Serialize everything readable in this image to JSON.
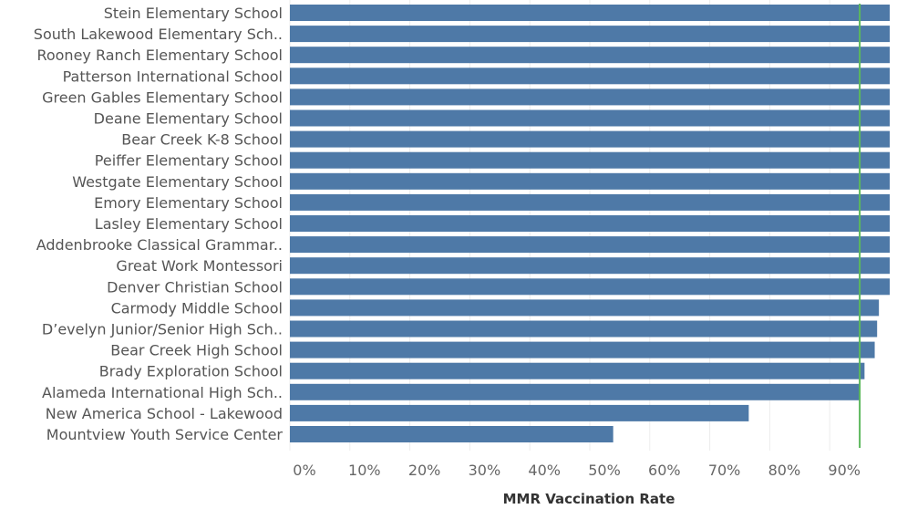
{
  "chart_data": {
    "type": "bar",
    "orientation": "horizontal",
    "title": "",
    "ylabel": "",
    "xlabel": "MMR Vaccination Rate",
    "xlim": [
      0,
      100
    ],
    "x_ticks": [
      "0%",
      "10%",
      "20%",
      "30%",
      "40%",
      "50%",
      "60%",
      "70%",
      "80%",
      "90%"
    ],
    "x_tick_values": [
      0,
      10,
      20,
      30,
      40,
      50,
      60,
      70,
      80,
      90
    ],
    "reference_line": {
      "value": 95,
      "color": "#5cb85c"
    },
    "bar_color": "#4e79a7",
    "grid": true,
    "categories": [
      "Stein Elementary School",
      "South Lakewood Elementary Sch..",
      "Rooney Ranch Elementary School",
      "Patterson International School",
      "Green Gables Elementary School",
      "Deane Elementary School",
      "Bear Creek K-8 School",
      "Peiffer Elementary School",
      "Westgate Elementary School",
      "Emory Elementary School",
      "Lasley Elementary School",
      "Addenbrooke Classical Grammar..",
      "Great Work Montessori",
      "Denver Christian School",
      "Carmody Middle School",
      "D’evelyn Junior/Senior High Sch..",
      "Bear Creek High School",
      "Brady Exploration School",
      "Alameda International High Sch..",
      "New America School - Lakewood",
      "Mountview Youth Service Center"
    ],
    "values": [
      100,
      100,
      100,
      100,
      100,
      100,
      100,
      100,
      100,
      100,
      100,
      100,
      100,
      100,
      98.2,
      97.9,
      97.5,
      95.8,
      94.9,
      76.5,
      53.9
    ]
  }
}
